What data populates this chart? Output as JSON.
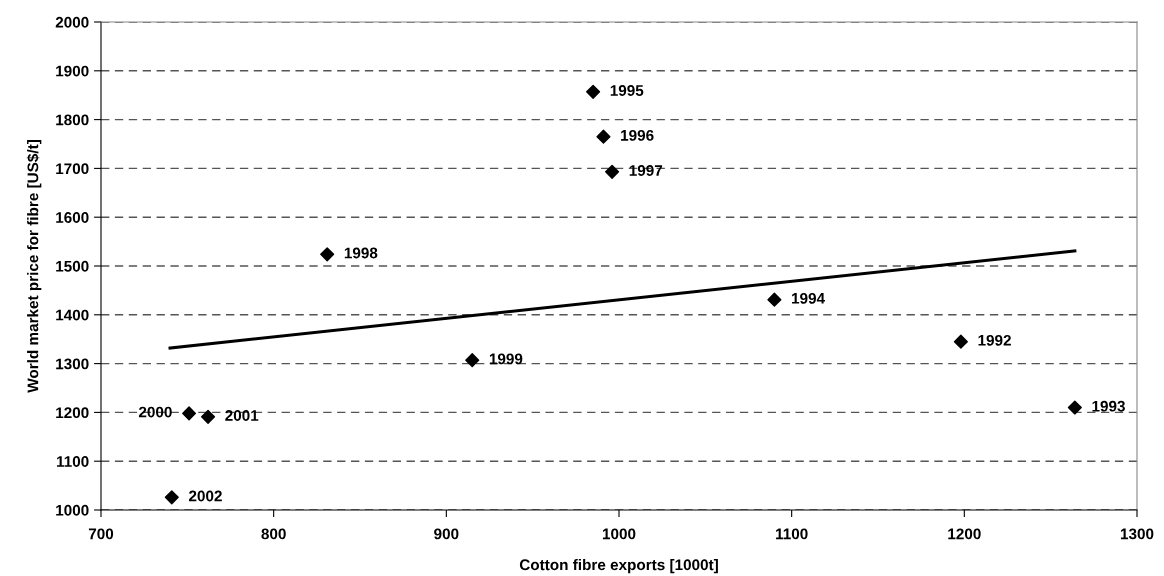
{
  "chart_data": {
    "type": "scatter",
    "xlabel": "Cotton fibre exports [1000t]",
    "ylabel": "World market price for fibre [US$/t]",
    "xlim": [
      700,
      1300
    ],
    "xticks": [
      700,
      800,
      900,
      1000,
      1100,
      1200,
      1300
    ],
    "ylim": [
      1000,
      2000
    ],
    "yticks": [
      1000,
      1100,
      1200,
      1300,
      1400,
      1500,
      1600,
      1700,
      1800,
      1900,
      2000
    ],
    "grid": "y",
    "marker": "diamond",
    "series": [
      {
        "color": "#000000",
        "x": [
          1198,
          1264,
          1090,
          985,
          991,
          996,
          831,
          915,
          751,
          762,
          741
        ],
        "values": [
          1345,
          1210,
          1431,
          1857,
          1765,
          1693,
          1524,
          1307,
          1198,
          1191,
          1026
        ]
      },
      {
        "type": "line",
        "color": "#000000",
        "marker": "none",
        "x": [
          740,
          1264
        ],
        "values": [
          1332,
          1531
        ]
      }
    ],
    "annotations": [
      {
        "text": "1992",
        "x": 1198,
        "y": 1345
      },
      {
        "text": "1993",
        "x": 1264,
        "y": 1210
      },
      {
        "text": "1994",
        "x": 1090,
        "y": 1431
      },
      {
        "text": "1995",
        "x": 985,
        "y": 1857
      },
      {
        "text": "1996",
        "x": 991,
        "y": 1765
      },
      {
        "text": "1997",
        "x": 996,
        "y": 1693
      },
      {
        "text": "1998",
        "x": 831,
        "y": 1524
      },
      {
        "text": "1999",
        "x": 915,
        "y": 1307
      },
      {
        "text": "2000",
        "x": 751,
        "y": 1198
      },
      {
        "text": "2001",
        "x": 762,
        "y": 1191
      },
      {
        "text": "2002",
        "x": 741,
        "y": 1026
      }
    ]
  }
}
